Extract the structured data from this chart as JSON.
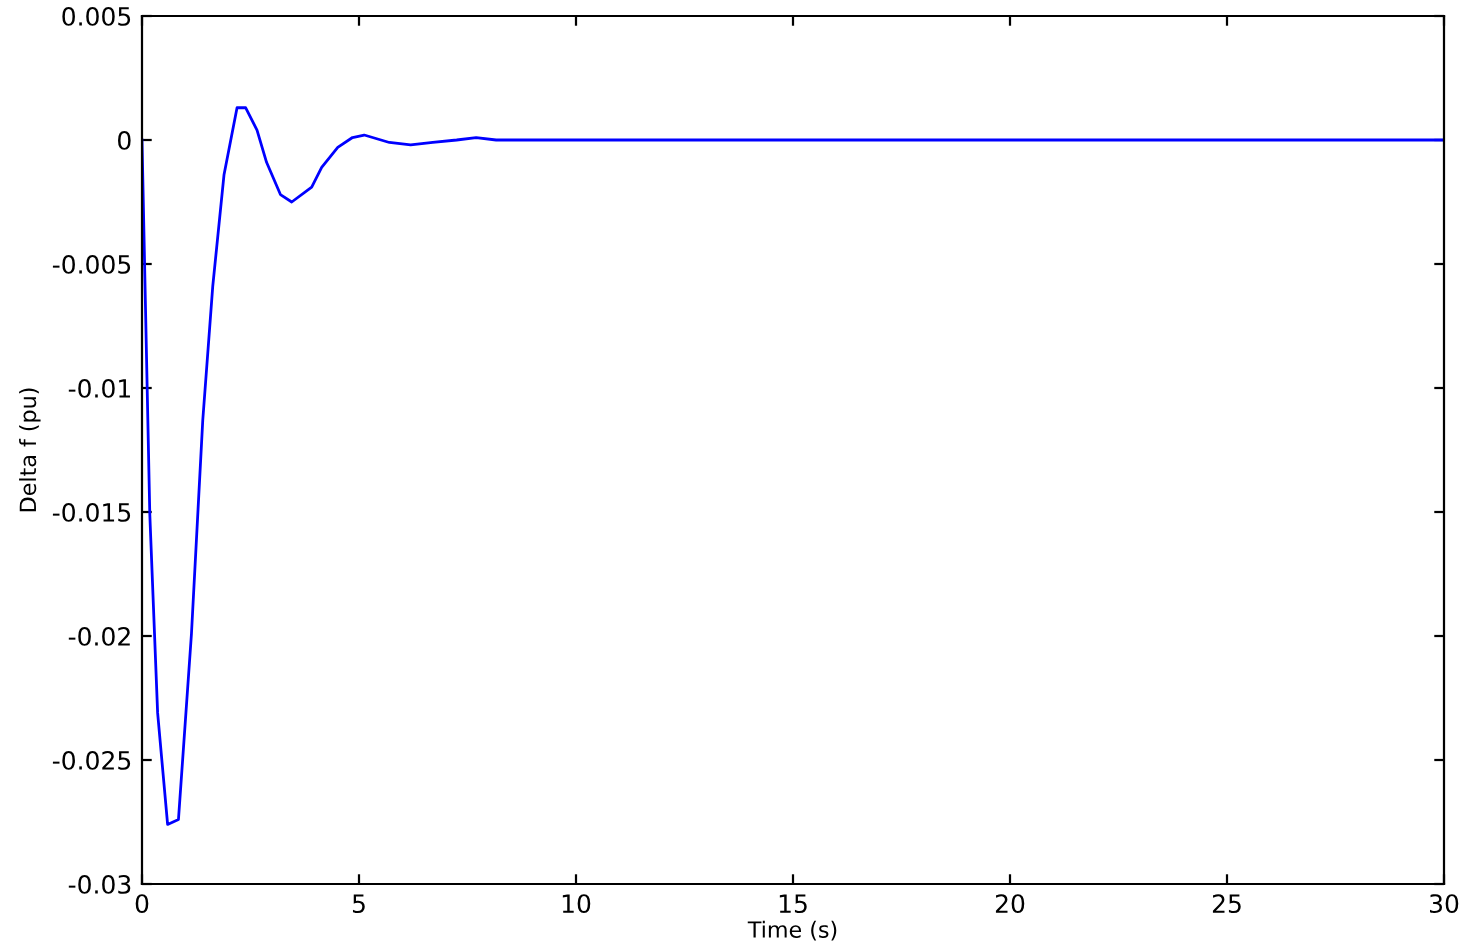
{
  "chart_data": {
    "type": "line",
    "xlabel": "Time (s)",
    "ylabel": "Delta f (pu)",
    "x": [
      0,
      0.18,
      0.36,
      0.59,
      0.84,
      1.14,
      1.4,
      1.63,
      1.89,
      2.19,
      2.39,
      2.65,
      2.87,
      3.19,
      3.45,
      3.91,
      4.14,
      4.51,
      4.85,
      5.12,
      5.7,
      6.19,
      6.7,
      7.25,
      7.7,
      8.16,
      30
    ],
    "series": [
      {
        "color": "#0000ff",
        "values": [
          0,
          -0.0151,
          -0.0231,
          -0.0276,
          -0.0274,
          -0.0199,
          -0.0113,
          -0.0059,
          -0.0014,
          0.0013,
          0.0013,
          0.0004,
          -0.0009,
          -0.0022,
          -0.0025,
          -0.0019,
          -0.0011,
          -0.0003,
          0.0001,
          0.0002,
          -0.0001,
          -0.0002,
          -0.0001,
          0,
          0.0001,
          0,
          0
        ]
      }
    ],
    "xlim": [
      0,
      30
    ],
    "xticks": [
      0,
      5,
      10,
      15,
      20,
      25,
      30
    ],
    "ylim": [
      -0.03,
      0.005
    ],
    "yticks": [
      -0.03,
      -0.025,
      -0.02,
      -0.015,
      -0.01,
      -0.005,
      0,
      0.005
    ],
    "grid": false,
    "legend": false,
    "line_style": "solid",
    "marker": "none"
  }
}
